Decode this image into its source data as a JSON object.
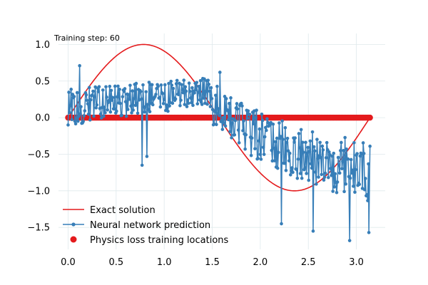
{
  "chart_data": {
    "type": "line",
    "title": "",
    "xlabel": "",
    "ylabel": "",
    "xlim": [
      -0.1,
      3.3
    ],
    "ylim": [
      -1.8,
      1.15
    ],
    "xticks": [
      0.0,
      0.5,
      1.0,
      1.5,
      2.0,
      2.5,
      3.0
    ],
    "yticks": [
      -1.5,
      -1.0,
      -0.5,
      0.0,
      0.5,
      1.0
    ],
    "xtick_labels": [
      "0.0",
      "0.5",
      "1.0",
      "1.5",
      "2.0",
      "2.5",
      "3.0"
    ],
    "ytick_labels": [
      "−1.5",
      "−1.0",
      "−0.5",
      "0.0",
      "0.5",
      "1.0"
    ],
    "grid": true,
    "legend_position": "lower-left",
    "annotation": "Training step: 60",
    "series": [
      {
        "name": "Exact solution",
        "kind": "line",
        "color": "#e41a1c",
        "function": "sin(2x)",
        "x_range": [
          0,
          3.14159
        ]
      },
      {
        "name": "Neural network prediction",
        "kind": "line-marker",
        "color": "#377eb8",
        "x_range": [
          0,
          3.14159
        ],
        "segments": [
          {
            "x_from": 0.0,
            "x_to": 0.35,
            "y_from": 0.15,
            "y_to": 0.2,
            "spread": 0.25
          },
          {
            "x_from": 0.35,
            "x_to": 1.05,
            "y_from": 0.2,
            "y_to": 0.3,
            "spread": 0.22
          },
          {
            "x_from": 1.05,
            "x_to": 1.5,
            "y_from": 0.3,
            "y_to": 0.35,
            "spread": 0.2
          },
          {
            "x_from": 1.5,
            "x_to": 1.9,
            "y_from": 0.2,
            "y_to": -0.2,
            "spread": 0.3
          },
          {
            "x_from": 1.9,
            "x_to": 2.5,
            "y_from": -0.2,
            "y_to": -0.55,
            "spread": 0.35
          },
          {
            "x_from": 2.5,
            "x_to": 3.14159,
            "y_from": -0.55,
            "y_to": -0.75,
            "spread": 0.4
          }
        ],
        "outliers": [
          {
            "x": 0.12,
            "y": 0.71
          },
          {
            "x": 0.77,
            "y": -0.65
          },
          {
            "x": 0.82,
            "y": -0.53
          },
          {
            "x": 1.58,
            "y": 0.62
          },
          {
            "x": 2.22,
            "y": -1.45
          },
          {
            "x": 2.55,
            "y": -1.55
          },
          {
            "x": 2.93,
            "y": -1.68
          },
          {
            "x": 3.13,
            "y": -1.57
          }
        ]
      },
      {
        "name": "Physics loss training locations",
        "kind": "scatter",
        "color": "#e41a1c",
        "x_range": [
          0,
          3.14159
        ],
        "y": 0.0
      }
    ]
  }
}
